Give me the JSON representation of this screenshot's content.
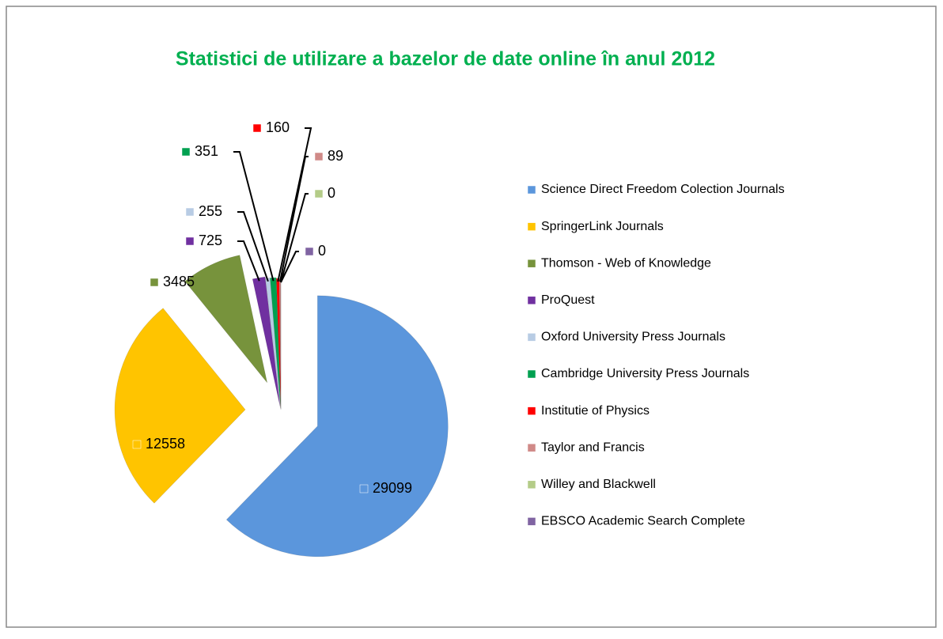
{
  "chart_data": {
    "type": "pie",
    "title": "Statistici de utilizare a bazelor de date online în anul 2012",
    "categories": [
      "Science Direct Freedom Colection Journals",
      "SpringerLink Journals",
      "Thomson - Web of Knowledge",
      "ProQuest",
      "Oxford University Press Journals",
      "Cambridge University Press Journals",
      "Institutie of Physics",
      "Taylor and Francis",
      "Willey and Blackwell",
      "EBSCO Academic Search Complete"
    ],
    "values": [
      29099,
      12558,
      3485,
      725,
      255,
      351,
      160,
      89,
      0,
      0
    ],
    "colors": [
      "#5b96dc",
      "#ffc400",
      "#77933c",
      "#7030a0",
      "#b8cce4",
      "#00a050",
      "#ff0000",
      "#d08a88",
      "#b4cc88",
      "#8064a2"
    ],
    "legend": "right"
  }
}
